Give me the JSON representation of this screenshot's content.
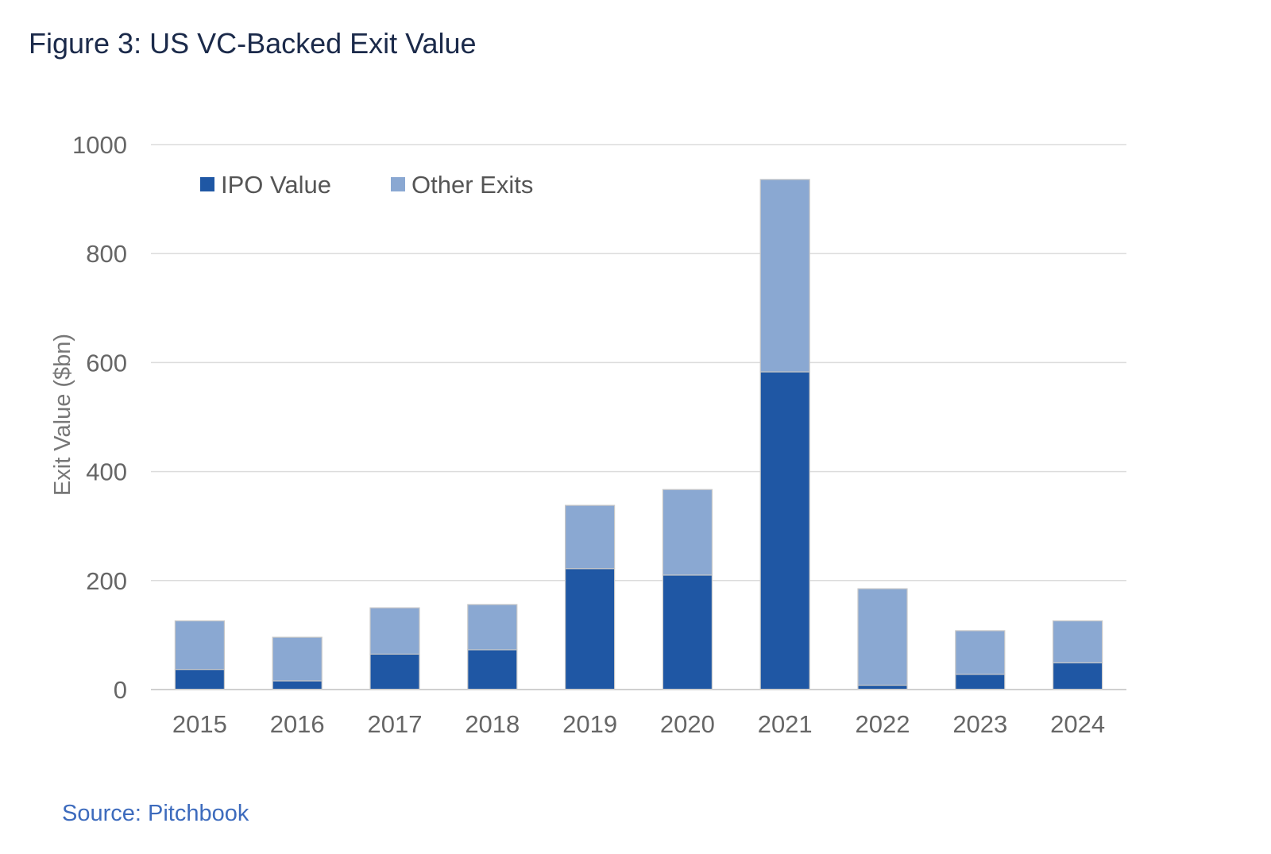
{
  "figure": {
    "title": "Figure 3: US VC-Backed Exit Value",
    "source": "Source: Pitchbook"
  },
  "chart_data": {
    "type": "bar",
    "stacked": true,
    "title": "",
    "xlabel": "",
    "ylabel": "Exit Value ($bn)",
    "ylim": [
      0,
      1000
    ],
    "yticks": [
      0,
      200,
      400,
      600,
      800,
      1000
    ],
    "grid": true,
    "legend_position": "top-left",
    "categories": [
      "2015",
      "2016",
      "2017",
      "2018",
      "2019",
      "2020",
      "2021",
      "2022",
      "2023",
      "2024"
    ],
    "series": [
      {
        "name": "IPO Value",
        "color": "#1f57a4",
        "values": [
          37,
          16,
          65,
          73,
          222,
          210,
          583,
          8,
          28,
          49
        ]
      },
      {
        "name": "Other Exits",
        "color": "#8aa8d2",
        "values": [
          89,
          80,
          85,
          83,
          116,
          157,
          353,
          177,
          80,
          77
        ]
      }
    ]
  }
}
